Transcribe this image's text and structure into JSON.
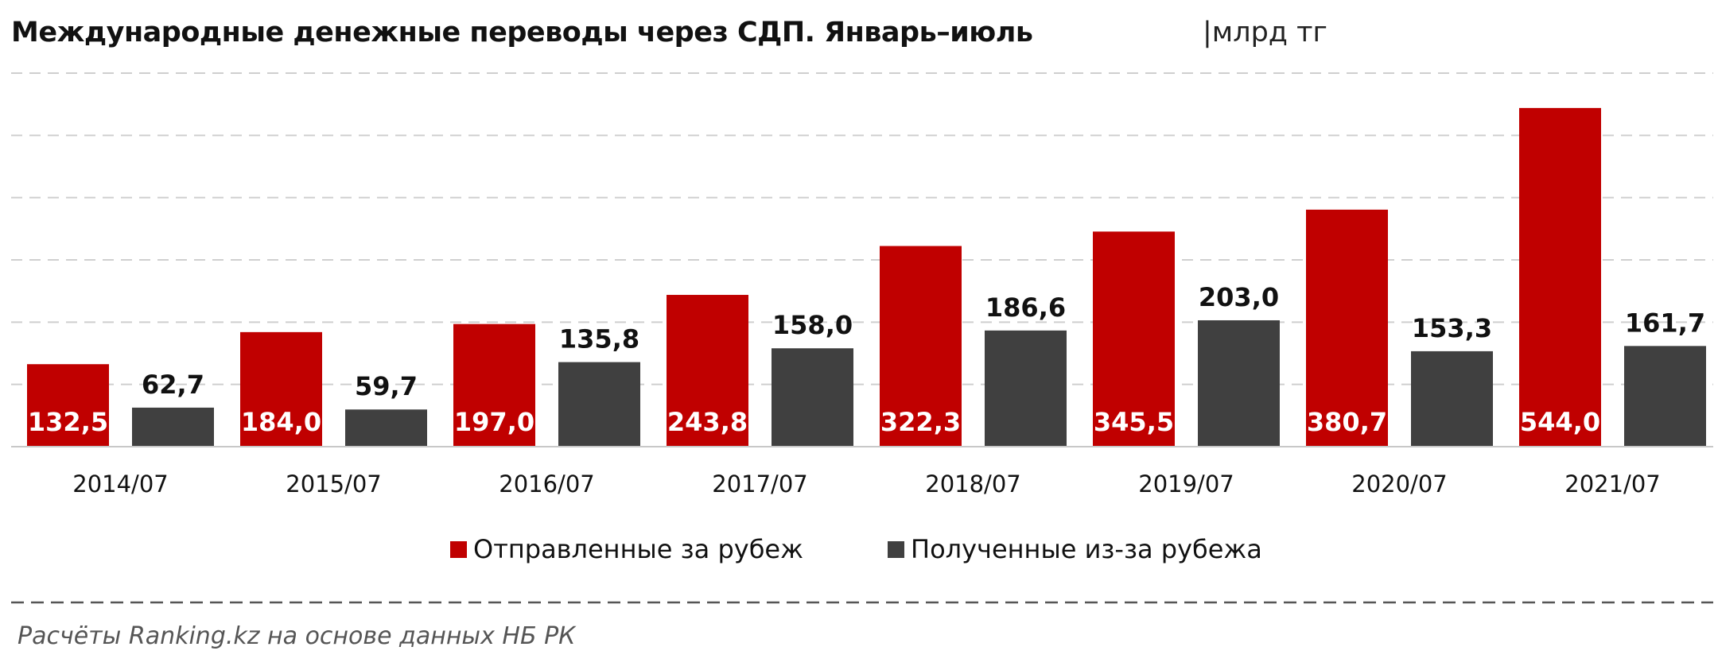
{
  "header": {
    "title": "Международные денежные переводы через СДП. Январь–июль",
    "unit": "|млрд тг"
  },
  "source": "Расчёты Ranking.kz на основе данных НБ РК",
  "colors": {
    "sent": "#c00000",
    "received": "#404040",
    "grid": "#cfcfcf"
  },
  "chart_data": {
    "type": "bar",
    "title": "Международные денежные переводы через СДП. Январь–июль",
    "subtitle": "|млрд тг",
    "xlabel": "",
    "ylabel": "",
    "ylim": [
      0,
      600
    ],
    "grid": true,
    "legend_position": "bottom-center",
    "categories": [
      "2014/07",
      "2015/07",
      "2016/07",
      "2017/07",
      "2018/07",
      "2019/07",
      "2020/07",
      "2021/07"
    ],
    "series": [
      {
        "name": "Отправленные за рубеж",
        "color": "#c00000",
        "values": [
          132.5,
          184.0,
          197.0,
          243.8,
          322.3,
          345.5,
          380.7,
          544.0
        ],
        "labels": [
          "132,5",
          "184,0",
          "197,0",
          "243,8",
          "322,3",
          "345,5",
          "380,7",
          "544,0"
        ],
        "label_position": "inside-base"
      },
      {
        "name": "Полученные из-за рубежа",
        "color": "#404040",
        "values": [
          62.7,
          59.7,
          135.8,
          158.0,
          186.6,
          203.0,
          153.3,
          161.7
        ],
        "labels": [
          "62,7",
          "59,7",
          "135,8",
          "158,0",
          "186,6",
          "203,0",
          "153,3",
          "161,7"
        ],
        "label_position": "above"
      }
    ]
  }
}
